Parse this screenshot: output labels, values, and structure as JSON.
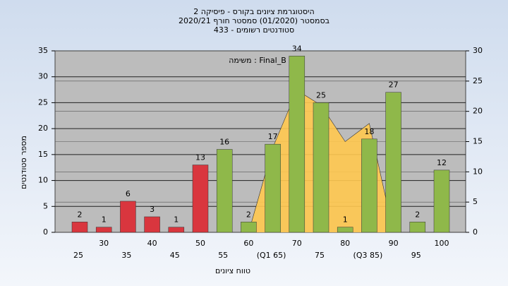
{
  "chart_data": {
    "type": "bar",
    "title_lines": [
      "היסטוגרמת ציונים בקורס - פיסיקה 2",
      "בסמסטר  (01/2020)  סמסטר חורף  2020/21",
      "סטודנטים רשומים - 433"
    ],
    "legend_text": "משימה : Final_B",
    "y_label": "מספר סטודנטים",
    "x_label": "טווח ציונים",
    "categories": [
      "25",
      "30",
      "35",
      "40",
      "45",
      "50",
      "55",
      "60",
      "(Q1 65)",
      "70",
      "75",
      "80",
      "(Q3 85)",
      "90",
      "95",
      "100"
    ],
    "values": [
      2,
      1,
      6,
      3,
      1,
      13,
      16,
      2,
      17,
      34,
      25,
      1,
      18,
      27,
      2,
      12
    ],
    "bar_colors": [
      "#d9363e",
      "#d9363e",
      "#d9363e",
      "#d9363e",
      "#d9363e",
      "#d9363e",
      "#8fb84a",
      "#8fb84a",
      "#8fb84a",
      "#8fb84a",
      "#8fb84a",
      "#8fb84a",
      "#8fb84a",
      "#8fb84a",
      "#8fb84a",
      "#8fb84a"
    ],
    "area": {
      "color": "#ffc84f",
      "axis": "y2",
      "values": [
        null,
        null,
        null,
        null,
        null,
        null,
        null,
        0,
        14,
        23.5,
        21,
        15,
        18,
        0,
        null,
        null
      ]
    },
    "ylim": [
      0,
      35
    ],
    "yticks": [
      0,
      5,
      10,
      15,
      20,
      25,
      30,
      35
    ],
    "y2lim": [
      0,
      30
    ],
    "y2ticks": [
      0,
      5,
      10,
      15,
      20,
      25,
      30
    ],
    "grid": true
  }
}
